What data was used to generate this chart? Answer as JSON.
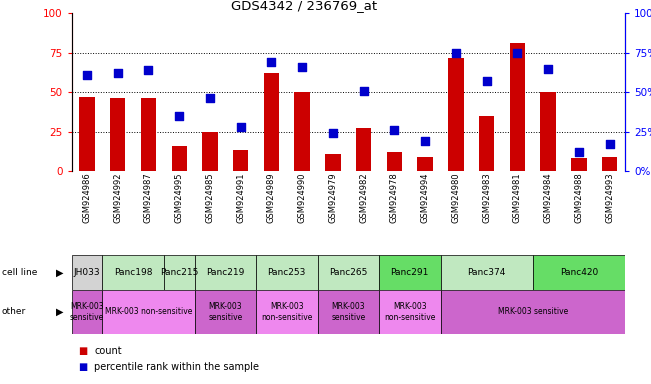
{
  "title": "GDS4342 / 236769_at",
  "samples": [
    "GSM924986",
    "GSM924992",
    "GSM924987",
    "GSM924995",
    "GSM924985",
    "GSM924991",
    "GSM924989",
    "GSM924990",
    "GSM924979",
    "GSM924982",
    "GSM924978",
    "GSM924994",
    "GSM924980",
    "GSM924983",
    "GSM924981",
    "GSM924984",
    "GSM924988",
    "GSM924993"
  ],
  "counts": [
    47,
    46,
    46,
    16,
    25,
    13,
    62,
    50,
    11,
    27,
    12,
    9,
    72,
    35,
    81,
    50,
    8,
    9
  ],
  "percentiles": [
    61,
    62,
    64,
    35,
    46,
    28,
    69,
    66,
    24,
    51,
    26,
    19,
    75,
    57,
    75,
    65,
    12,
    17
  ],
  "cell_lines": [
    {
      "name": "JH033",
      "start": 0,
      "end": 1,
      "color": "#d3d3d3"
    },
    {
      "name": "Panc198",
      "start": 1,
      "end": 3,
      "color": "#c0e8c0"
    },
    {
      "name": "Panc215",
      "start": 3,
      "end": 4,
      "color": "#c0e8c0"
    },
    {
      "name": "Panc219",
      "start": 4,
      "end": 6,
      "color": "#c0e8c0"
    },
    {
      "name": "Panc253",
      "start": 6,
      "end": 8,
      "color": "#c0e8c0"
    },
    {
      "name": "Panc265",
      "start": 8,
      "end": 10,
      "color": "#c0e8c0"
    },
    {
      "name": "Panc291",
      "start": 10,
      "end": 12,
      "color": "#66dd66"
    },
    {
      "name": "Panc374",
      "start": 12,
      "end": 15,
      "color": "#c0e8c0"
    },
    {
      "name": "Panc420",
      "start": 15,
      "end": 18,
      "color": "#66dd66"
    }
  ],
  "other_blocks": [
    {
      "label": "MRK-003\nsensitive",
      "start": 0,
      "end": 1,
      "color": "#cc66cc"
    },
    {
      "label": "MRK-003 non-sensitive",
      "start": 1,
      "end": 4,
      "color": "#ee88ee"
    },
    {
      "label": "MRK-003\nsensitive",
      "start": 4,
      "end": 6,
      "color": "#cc66cc"
    },
    {
      "label": "MRK-003\nnon-sensitive",
      "start": 6,
      "end": 8,
      "color": "#ee88ee"
    },
    {
      "label": "MRK-003\nsensitive",
      "start": 8,
      "end": 10,
      "color": "#cc66cc"
    },
    {
      "label": "MRK-003\nnon-sensitive",
      "start": 10,
      "end": 12,
      "color": "#ee88ee"
    },
    {
      "label": "MRK-003 sensitive",
      "start": 12,
      "end": 18,
      "color": "#cc66cc"
    }
  ],
  "bar_color": "#cc0000",
  "dot_color": "#0000cc",
  "ylim": [
    0,
    100
  ],
  "yticks": [
    0,
    25,
    50,
    75,
    100
  ],
  "grid_lines": [
    25,
    50,
    75
  ]
}
